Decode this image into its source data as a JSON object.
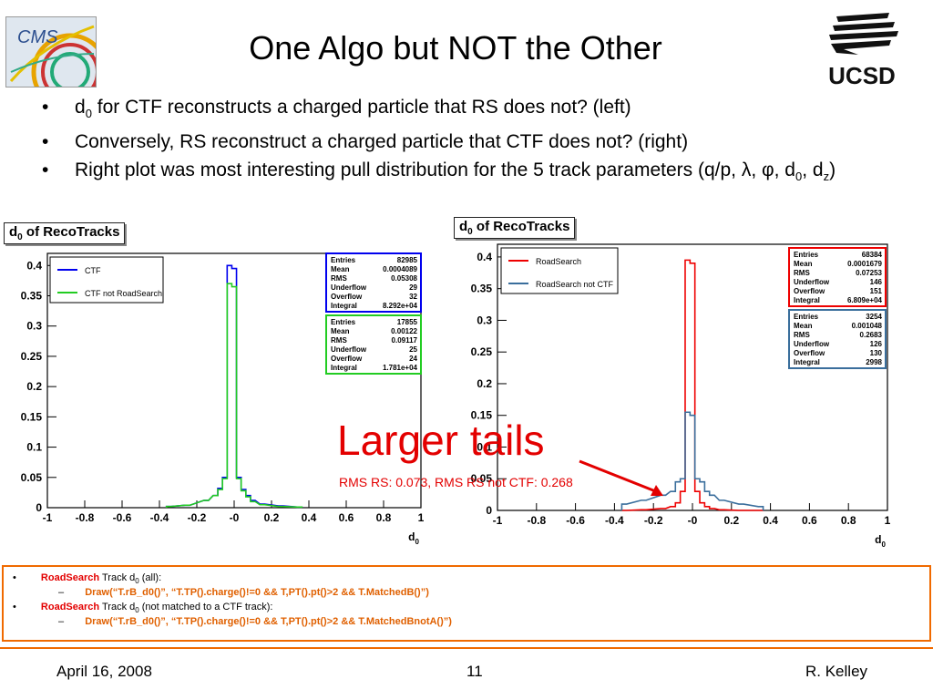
{
  "slide": {
    "title": "One Algo but NOT the Other",
    "bullets": [
      {
        "parts": [
          "d",
          "0",
          " for CTF reconstructs a charged particle that RS does not? (left)"
        ]
      },
      {
        "text": "Conversely, RS reconstruct a charged particle that CTF does not? (right)"
      },
      {
        "parts": [
          "Right plot was most interesting pull distribution for the 5 track parameters (q/p, λ, φ, d",
          "0",
          ", d",
          "z",
          ")"
        ]
      }
    ],
    "logos": {
      "left_text": "CMS",
      "right_text": "UCSD"
    },
    "annotation": {
      "big": "Larger tails",
      "small": "RMS RS: 0.073, RMS RS not CTF: 0.268"
    },
    "code": {
      "items": [
        {
          "bullet": "•",
          "algo": "RoadSearch",
          "desc1": " Track d",
          "sub": "0",
          "desc2": " (all):",
          "dash": "–",
          "cmd": "Draw(“T.rB_d0()”, “T.TP().charge()!=0 && T,PT().pt()>2 && T.MatchedB()”)"
        },
        {
          "bullet": "•",
          "algo": "RoadSearch",
          "desc1": " Track d",
          "sub": "0",
          "desc2": " (not matched to a CTF track):",
          "dash": "–",
          "cmd": "Draw(“T.rB_d0()”, “T.TP().charge()!=0 && T,PT().pt()>2 && T.MatchedBnotA()”)"
        }
      ]
    },
    "footer": {
      "date": "April 16, 2008",
      "page": "11",
      "author": "R. Kelley"
    }
  },
  "chart_data": [
    {
      "type": "bar",
      "title_main": "d",
      "title_sub": "0",
      "title_rest": " of RecoTracks",
      "xlabel_main": "d",
      "xlabel_sub": "0",
      "xlim": [
        -1,
        1
      ],
      "ylim": [
        0,
        0.42
      ],
      "xticks": [
        "-1",
        "-0.8",
        "-0.6",
        "-0.4",
        "-0.2",
        "-0",
        "0.2",
        "0.4",
        "0.6",
        "0.8",
        "1"
      ],
      "yticks": [
        "0",
        "0.05",
        "0.1",
        "0.15",
        "0.2",
        "0.25",
        "0.3",
        "0.35",
        "0.4"
      ],
      "legend": [
        "CTF",
        "CTF not RoadSearch"
      ],
      "series": [
        {
          "name": "CTF",
          "color": "#0000ee",
          "x": [
            -0.35,
            -0.25,
            -0.15,
            -0.1,
            -0.075,
            -0.05,
            -0.025,
            0,
            0.025,
            0.05,
            0.075,
            0.1,
            0.15,
            0.25,
            0.35
          ],
          "values": [
            0.002,
            0.004,
            0.012,
            0.02,
            0.032,
            0.05,
            0.4,
            0.395,
            0.05,
            0.03,
            0.02,
            0.012,
            0.006,
            0.003,
            0.001
          ]
        },
        {
          "name": "CTF not RoadSearch",
          "color": "#22cc22",
          "x": [
            -0.35,
            -0.25,
            -0.15,
            -0.1,
            -0.075,
            -0.05,
            -0.025,
            0,
            0.025,
            0.05,
            0.075,
            0.1,
            0.15,
            0.25,
            0.35
          ],
          "values": [
            0.002,
            0.004,
            0.012,
            0.02,
            0.03,
            0.048,
            0.37,
            0.365,
            0.048,
            0.028,
            0.018,
            0.01,
            0.005,
            0.002,
            0.001
          ]
        }
      ],
      "stats": [
        {
          "color": "#0000ee",
          "rows": [
            [
              "Entries",
              "82985"
            ],
            [
              "Mean",
              "0.0004089"
            ],
            [
              "RMS",
              "0.05308"
            ],
            [
              "Underflow",
              "29"
            ],
            [
              "Overflow",
              "32"
            ],
            [
              "Integral",
              "8.292e+04"
            ]
          ]
        },
        {
          "color": "#22cc22",
          "rows": [
            [
              "Entries",
              "17855"
            ],
            [
              "Mean",
              "0.00122"
            ],
            [
              "RMS",
              "0.09117"
            ],
            [
              "Underflow",
              "25"
            ],
            [
              "Overflow",
              "24"
            ],
            [
              "Integral",
              "1.781e+04"
            ]
          ]
        }
      ]
    },
    {
      "type": "bar",
      "title_main": "d",
      "title_sub": "0",
      "title_rest": " of RecoTracks",
      "xlabel_main": "d",
      "xlabel_sub": "0",
      "xlim": [
        -1,
        1
      ],
      "ylim": [
        0,
        0.42
      ],
      "xticks": [
        "-1",
        "-0.8",
        "-0.6",
        "-0.4",
        "-0.2",
        "-0",
        "0.2",
        "0.4",
        "0.6",
        "0.8",
        "1"
      ],
      "yticks": [
        "0",
        "0.05",
        "0.1",
        "0.15",
        "0.2",
        "0.25",
        "0.3",
        "0.35",
        "0.4"
      ],
      "legend": [
        "RoadSearch",
        "RoadSearch not CTF"
      ],
      "series": [
        {
          "name": "RoadSearch",
          "color": "#ee0000",
          "x": [
            -0.35,
            -0.25,
            -0.15,
            -0.1,
            -0.075,
            -0.05,
            -0.025,
            0,
            0.025,
            0.05,
            0.075,
            0.1,
            0.15,
            0.25,
            0.35
          ],
          "values": [
            0.0,
            0.001,
            0.003,
            0.006,
            0.012,
            0.03,
            0.395,
            0.39,
            0.03,
            0.012,
            0.006,
            0.003,
            0.001,
            0.0,
            0.0
          ]
        },
        {
          "name": "RoadSearch not CTF",
          "color": "#3a6e9c",
          "x": [
            -0.35,
            -0.25,
            -0.15,
            -0.1,
            -0.075,
            -0.05,
            -0.025,
            0,
            0.025,
            0.05,
            0.075,
            0.1,
            0.15,
            0.25,
            0.35
          ],
          "values": [
            0.01,
            0.016,
            0.024,
            0.03,
            0.045,
            0.05,
            0.155,
            0.15,
            0.05,
            0.045,
            0.03,
            0.024,
            0.016,
            0.01,
            0.006
          ]
        }
      ],
      "stats": [
        {
          "color": "#ee0000",
          "rows": [
            [
              "Entries",
              "68384"
            ],
            [
              "Mean",
              "0.0001679"
            ],
            [
              "RMS",
              "0.07253"
            ],
            [
              "Underflow",
              "146"
            ],
            [
              "Overflow",
              "151"
            ],
            [
              "Integral",
              "6.809e+04"
            ]
          ]
        },
        {
          "color": "#3a6e9c",
          "rows": [
            [
              "Entries",
              "3254"
            ],
            [
              "Mean",
              "0.001048"
            ],
            [
              "RMS",
              "0.2683"
            ],
            [
              "Underflow",
              "126"
            ],
            [
              "Overflow",
              "130"
            ],
            [
              "Integral",
              "2998"
            ]
          ]
        }
      ]
    }
  ]
}
